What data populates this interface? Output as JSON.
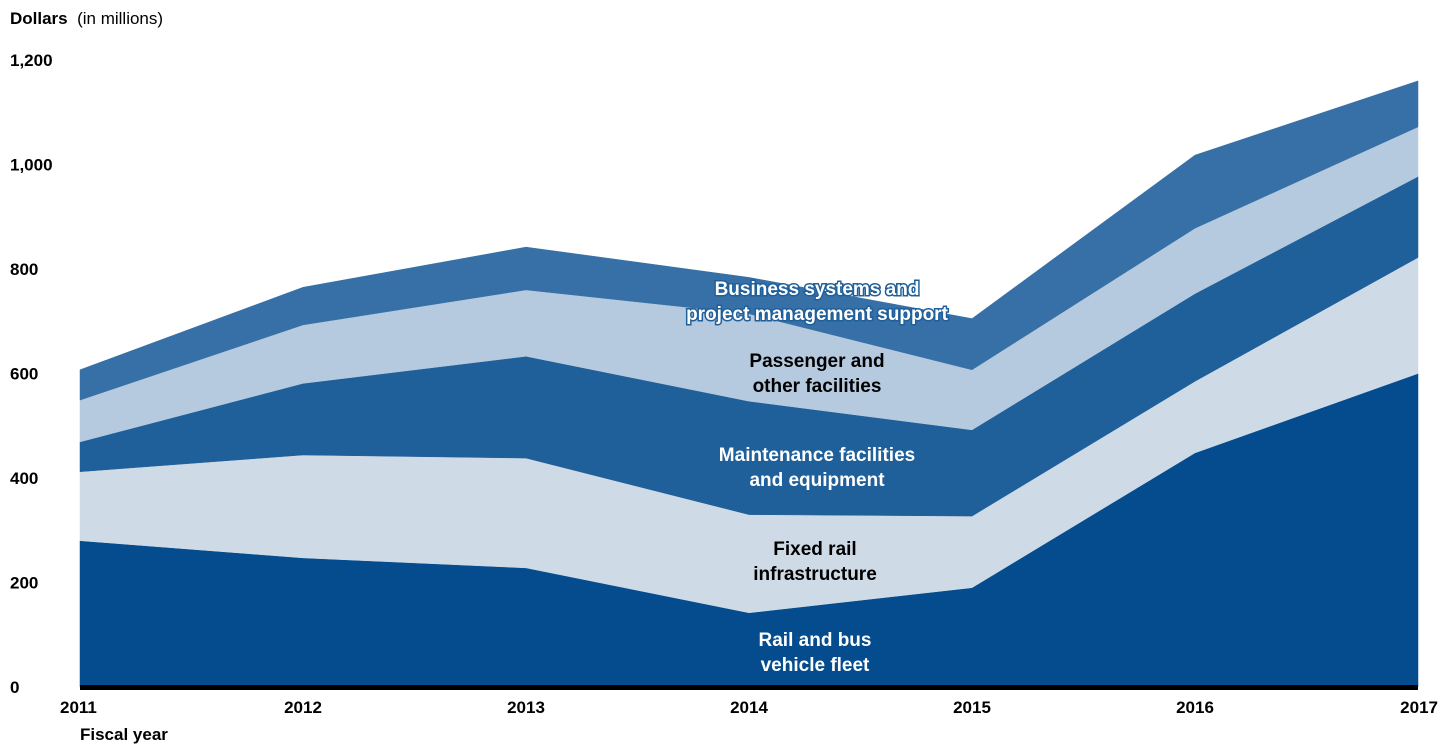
{
  "chart_data": {
    "type": "area",
    "stacked": true,
    "ylabel": {
      "main": "Dollars",
      "unit": "(in millions)"
    },
    "xlabel": "Fiscal year",
    "x": [
      "2011",
      "2012",
      "2013",
      "2014",
      "2015",
      "2016",
      "2017"
    ],
    "ylim": [
      0,
      1200
    ],
    "yticks": [
      "0",
      "200",
      "400",
      "600",
      "800",
      "1,000",
      "1,200"
    ],
    "grid": false,
    "series": [
      {
        "name": "Rail and bus vehicle fleet",
        "color": "#054c8e",
        "label_color": "#ffffff",
        "values": [
          280,
          247,
          228,
          142,
          190,
          448,
          600
        ]
      },
      {
        "name": "Fixed rail infrastructure",
        "color": "#cedbe7",
        "label_color": "#000000",
        "values": [
          132,
          197,
          210,
          188,
          137,
          137,
          222
        ]
      },
      {
        "name": "Maintenance facilities and equipment",
        "color": "#1f5f9a",
        "label_color": "#ffffff",
        "values": [
          57,
          137,
          195,
          217,
          165,
          168,
          155
        ]
      },
      {
        "name": "Passenger and other facilities",
        "color": "#b5cade",
        "label_color": "#000000",
        "values": [
          80,
          112,
          127,
          167,
          115,
          125,
          95
        ]
      },
      {
        "name": "Business systems and project management support",
        "color": "#3770a6",
        "label_color": "#ffffff",
        "values": [
          58,
          72,
          82,
          70,
          98,
          140,
          88
        ]
      }
    ],
    "annotations": [
      {
        "lines": [
          "Rail and bus",
          "vehicle fleet"
        ],
        "series": 0
      },
      {
        "lines": [
          "Fixed rail",
          "infrastructure"
        ],
        "series": 1
      },
      {
        "lines": [
          "Maintenance facilities",
          "and equipment"
        ],
        "series": 2
      },
      {
        "lines": [
          "Passenger and",
          "other facilities"
        ],
        "series": 3
      },
      {
        "lines": [
          "Business systems and",
          "project management support"
        ],
        "series": 4
      }
    ]
  }
}
